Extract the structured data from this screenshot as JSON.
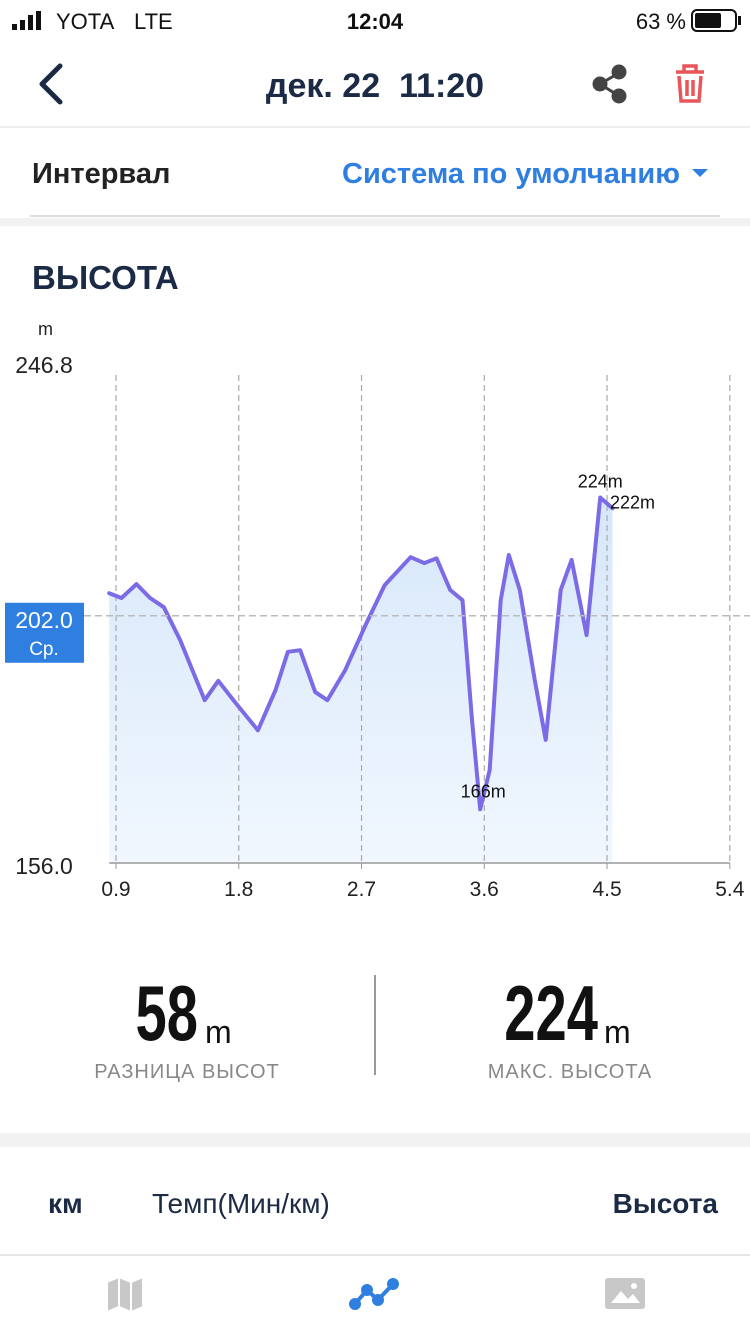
{
  "status_bar": {
    "carrier": "YOTA",
    "network": "LTE",
    "time": "12:04",
    "battery": "63 %"
  },
  "header": {
    "title": "дек. 22  11:20"
  },
  "interval": {
    "label": "Интервал",
    "value": "Система по умолчанию"
  },
  "section_title": "ВЫСОТА",
  "chart_data": {
    "type": "line",
    "y_unit": "m",
    "color": "#7b6be6",
    "fill": "#dcebfb",
    "x": [
      0.85,
      0.94,
      1.05,
      1.15,
      1.25,
      1.37,
      1.55,
      1.65,
      1.77,
      1.94,
      2.07,
      2.16,
      2.25,
      2.36,
      2.45,
      2.58,
      2.73,
      2.87,
      3.06,
      3.16,
      3.25,
      3.35,
      3.44,
      3.51,
      3.57,
      3.64,
      3.72,
      3.78,
      3.86,
      3.97,
      4.05,
      4.16,
      4.24,
      4.35,
      4.45,
      4.54
    ],
    "values": [
      206.2,
      205.3,
      207.9,
      205.3,
      203.6,
      197.5,
      186.3,
      189.9,
      186.0,
      180.7,
      188.2,
      195.3,
      195.6,
      187.8,
      186.3,
      191.9,
      200.3,
      207.7,
      212.9,
      211.8,
      212.7,
      206.8,
      204.9,
      182.6,
      166,
      173.3,
      204.9,
      213.3,
      206.8,
      190.0,
      178.9,
      206.8,
      212.4,
      198.4,
      224,
      222
    ],
    "value_labels": [
      null,
      null,
      null,
      null,
      null,
      null,
      null,
      null,
      null,
      null,
      null,
      null,
      null,
      null,
      null,
      null,
      null,
      null,
      null,
      null,
      null,
      null,
      null,
      null,
      "166m",
      null,
      null,
      null,
      null,
      null,
      null,
      null,
      null,
      null,
      "224m",
      "222m"
    ],
    "xlim": [
      0.85,
      5.4
    ],
    "xticks": [
      0.9,
      1.8,
      2.7,
      3.6,
      4.5,
      5.4
    ],
    "ylim": [
      156.0,
      246.8
    ],
    "yticks": [
      {
        "value": 156.0,
        "label": "156.0"
      },
      246.8
    ],
    "average": {
      "value": 202.0,
      "label": "202.0",
      "caption": "Ср."
    },
    "grid": true
  },
  "stats": [
    {
      "value": 58,
      "unit": "m",
      "label": "РАЗНИЦА ВЫСОТ"
    },
    {
      "value": 224,
      "unit": "m",
      "label": "МАКС. ВЫСОТА"
    }
  ],
  "table_header": [
    "км",
    "Темп(Мин/км)",
    "Высота"
  ]
}
